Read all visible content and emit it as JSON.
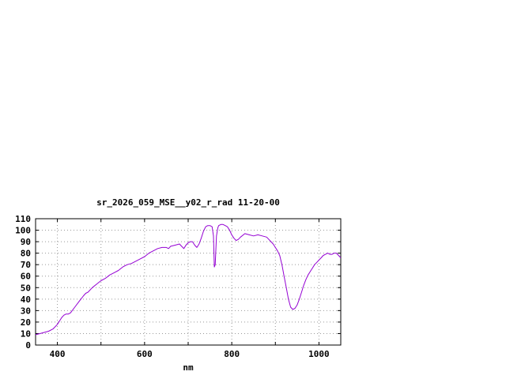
{
  "page": {
    "background": "#ffffff"
  },
  "chart_data": {
    "type": "line",
    "title": "sr_2026_059_MSE__y02_r_rad 11-20-00",
    "xlabel": "nm",
    "ylabel": "",
    "xlim": [
      350,
      1050
    ],
    "ylim": [
      0,
      110
    ],
    "x_ticks_labeled": [
      400,
      600,
      800,
      1000
    ],
    "x_grid_step": 100,
    "y_ticks": [
      0,
      10,
      20,
      30,
      40,
      50,
      60,
      70,
      80,
      90,
      100,
      110
    ],
    "grid": true,
    "legend": "none",
    "colors": {
      "line": "#9400d3",
      "grid": "#999999",
      "axis": "#000000",
      "text": "#000000"
    },
    "series": [
      {
        "name": "sr_2026_059_MSE__y02_r_rad",
        "x": [
          350,
          360,
          370,
          380,
          390,
          400,
          405,
          410,
          415,
          420,
          425,
          430,
          440,
          450,
          460,
          465,
          470,
          480,
          490,
          500,
          510,
          520,
          530,
          540,
          550,
          560,
          570,
          580,
          590,
          600,
          610,
          620,
          630,
          640,
          650,
          655,
          660,
          670,
          680,
          685,
          690,
          695,
          700,
          705,
          710,
          715,
          720,
          725,
          730,
          735,
          740,
          745,
          750,
          755,
          758,
          760,
          762,
          765,
          768,
          770,
          775,
          780,
          785,
          790,
          795,
          800,
          805,
          810,
          815,
          820,
          830,
          840,
          850,
          860,
          870,
          880,
          885,
          890,
          895,
          900,
          905,
          910,
          915,
          920,
          925,
          930,
          935,
          940,
          945,
          950,
          955,
          960,
          965,
          970,
          975,
          980,
          985,
          990,
          995,
          1000,
          1005,
          1010,
          1015,
          1020,
          1025,
          1030,
          1035,
          1040,
          1045,
          1050
        ],
        "y": [
          9,
          10,
          11,
          12,
          14,
          18,
          21,
          24,
          26,
          27,
          27,
          28,
          33,
          38,
          43,
          45,
          46,
          50,
          53,
          56,
          58,
          61,
          63,
          65,
          68,
          70,
          71,
          73,
          75,
          77,
          80,
          82,
          84,
          85,
          85,
          84,
          86,
          87,
          88,
          86,
          84,
          87,
          89,
          90,
          90,
          87,
          85,
          88,
          93,
          99,
          103,
          104,
          104,
          103,
          95,
          68,
          70,
          95,
          102,
          104,
          105,
          105,
          104,
          103,
          100,
          96,
          93,
          91,
          92,
          94,
          97,
          96,
          95,
          96,
          95,
          94,
          92,
          90,
          88,
          85,
          82,
          78,
          70,
          60,
          50,
          40,
          33,
          31,
          32,
          35,
          40,
          46,
          52,
          57,
          61,
          64,
          67,
          70,
          72,
          74,
          76,
          78,
          79,
          80,
          79,
          79,
          80,
          80,
          78,
          76
        ]
      }
    ]
  }
}
